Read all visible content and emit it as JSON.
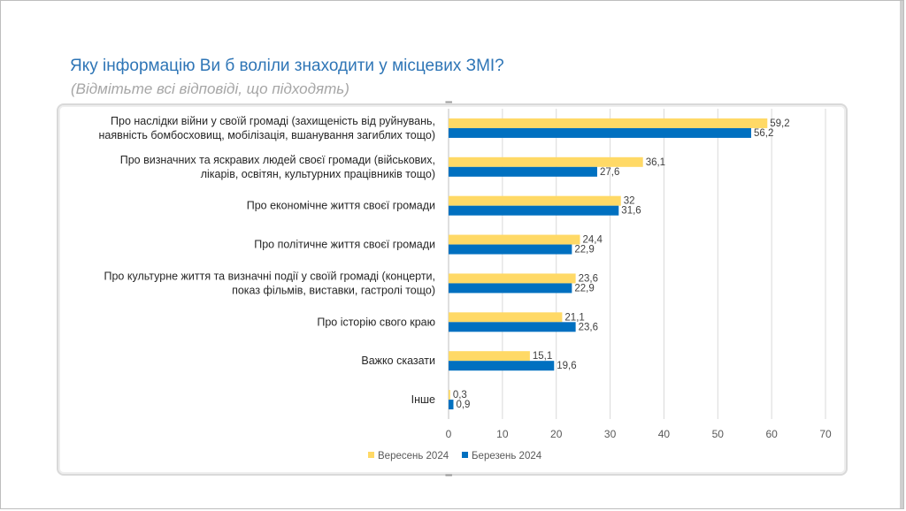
{
  "slide": {
    "title": "Яку інформацію Ви б воліли знаходити у місцевих ЗМІ?",
    "subtitle": "(Відмітьте всі відповіді, що підходять)"
  },
  "chart_data": {
    "type": "bar",
    "orientation": "horizontal",
    "categories": [
      [
        "Про наслідки війни у своїй громаді (захищеність від руйнувань,",
        "наявність бомбосховищ, мобілізація, вшанування загиблих тощо)"
      ],
      [
        "Про визначних та яскравих людей своєї громади (військових,",
        "лікарів, освітян, культурних працівників тощо)"
      ],
      [
        "Про економічне життя своєї громади"
      ],
      [
        "Про політичне життя своєї громади"
      ],
      [
        "Про культурне життя та визначні події у своїй громаді (концерти,",
        "показ фільмів, виставки, гастролі тощо)"
      ],
      [
        "Про історію свого краю"
      ],
      [
        "Важко сказати"
      ],
      [
        "Інше"
      ]
    ],
    "series": [
      {
        "name": "Вересень 2024",
        "color": "#ffd966",
        "values": [
          59.2,
          36.1,
          32,
          24.4,
          23.6,
          21.1,
          15.1,
          0.3
        ],
        "labels": [
          "59,2",
          "36,1",
          "32",
          "24,4",
          "23,6",
          "21,1",
          "15,1",
          "0,3"
        ]
      },
      {
        "name": "Березень 2024",
        "color": "#0070c0",
        "values": [
          56.2,
          27.6,
          31.6,
          22.9,
          22.9,
          23.6,
          19.6,
          0.9
        ],
        "labels": [
          "56,2",
          "27,6",
          "31,6",
          "22,9",
          "22,9",
          "23,6",
          "19,6",
          "0,9"
        ]
      }
    ],
    "xlim": [
      0,
      70
    ],
    "xticks": [
      "0",
      "10",
      "20",
      "30",
      "40",
      "50",
      "60",
      "70"
    ],
    "grid": true,
    "legend": "bottom"
  }
}
